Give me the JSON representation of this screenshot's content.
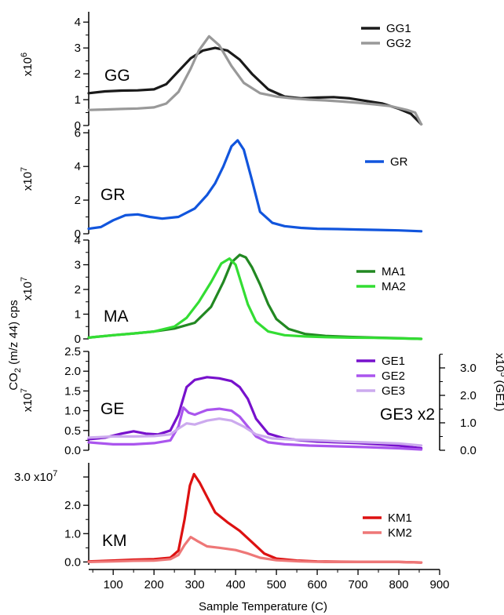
{
  "chart_data": {
    "type": "line",
    "xlabel": "Sample Temperature (C)",
    "ylabel_main": "CO",
    "ylabel_sub": "2",
    "ylabel_rest": " (m/z 44) cps",
    "xlim": [
      40,
      900
    ],
    "xticks": [
      100,
      200,
      300,
      400,
      500,
      600,
      700,
      800,
      900
    ],
    "panels": [
      {
        "id": "GG",
        "label": "GG",
        "multiplier_base": "x10",
        "multiplier_exp": "6",
        "ylim": [
          0,
          4.4
        ],
        "yticks": [
          0,
          1,
          2,
          3,
          4
        ],
        "ytick_labels": [
          "0",
          "1",
          "2",
          "3",
          "4"
        ],
        "series": [
          {
            "name": "GG1",
            "color": "#1a1a1a",
            "x": [
              40,
              80,
              120,
              160,
              200,
              230,
              260,
              290,
              320,
              350,
              380,
              410,
              440,
              480,
              520,
              560,
              600,
              640,
              680,
              720,
              760,
              800,
              830,
              855
            ],
            "y": [
              1.25,
              1.32,
              1.35,
              1.36,
              1.4,
              1.6,
              2.1,
              2.6,
              2.9,
              3.0,
              2.9,
              2.55,
              2.0,
              1.4,
              1.12,
              1.05,
              1.08,
              1.1,
              1.05,
              0.95,
              0.85,
              0.65,
              0.45,
              0.05
            ]
          },
          {
            "name": "GG2",
            "color": "#999999",
            "x": [
              40,
              80,
              120,
              160,
              200,
              230,
              260,
              290,
              310,
              335,
              360,
              390,
              420,
              460,
              500,
              540,
              580,
              620,
              660,
              700,
              740,
              780,
              820,
              840,
              855
            ],
            "y": [
              0.6,
              0.62,
              0.64,
              0.66,
              0.7,
              0.85,
              1.3,
              2.2,
              2.9,
              3.45,
              3.1,
              2.3,
              1.65,
              1.25,
              1.12,
              1.05,
              1.0,
              0.97,
              0.93,
              0.88,
              0.82,
              0.75,
              0.6,
              0.5,
              0.05
            ]
          }
        ],
        "legend": [
          "GG1",
          "GG2"
        ]
      },
      {
        "id": "GR",
        "label": "GR",
        "multiplier_base": "x10",
        "multiplier_exp": "7",
        "ylim": [
          0,
          6.2
        ],
        "yticks": [
          0,
          2,
          4,
          6
        ],
        "ytick_labels": [
          "0",
          "2",
          "4",
          "6"
        ],
        "series": [
          {
            "name": "GR",
            "color": "#1155dd",
            "x": [
              40,
              70,
              100,
              130,
              160,
              190,
              220,
              260,
              300,
              330,
              350,
              370,
              390,
              405,
              420,
              440,
              460,
              490,
              520,
              560,
              600,
              650,
              700,
              750,
              800,
              855
            ],
            "y": [
              0.3,
              0.4,
              0.8,
              1.1,
              1.15,
              1.0,
              0.9,
              1.0,
              1.5,
              2.3,
              3.0,
              4.0,
              5.2,
              5.55,
              5.0,
              3.2,
              1.3,
              0.65,
              0.45,
              0.35,
              0.3,
              0.28,
              0.25,
              0.23,
              0.2,
              0.15
            ]
          }
        ],
        "legend": [
          "GR"
        ]
      },
      {
        "id": "MA",
        "label": "MA",
        "multiplier_base": "x10",
        "multiplier_exp": "7",
        "ylim": [
          0,
          4.0
        ],
        "yticks": [
          0,
          1,
          2,
          3,
          4
        ],
        "ytick_labels": [
          "0",
          "1",
          "2",
          "3",
          "4"
        ],
        "series": [
          {
            "name": "MA1",
            "color": "#228822",
            "x": [
              40,
              100,
              150,
              200,
              250,
              300,
              340,
              370,
              390,
              410,
              425,
              440,
              460,
              480,
              500,
              530,
              570,
              620,
              680,
              740,
              800,
              855
            ],
            "y": [
              0.05,
              0.15,
              0.22,
              0.3,
              0.42,
              0.65,
              1.3,
              2.3,
              3.1,
              3.4,
              3.3,
              2.9,
              2.2,
              1.4,
              0.8,
              0.4,
              0.2,
              0.12,
              0.08,
              0.05,
              0.03,
              0.0
            ]
          },
          {
            "name": "MA2",
            "color": "#33dd33",
            "x": [
              40,
              100,
              150,
              200,
              250,
              280,
              310,
              340,
              365,
              385,
              400,
              415,
              430,
              450,
              480,
              520,
              570,
              620,
              680,
              740,
              800,
              855
            ],
            "y": [
              0.05,
              0.15,
              0.22,
              0.3,
              0.5,
              0.85,
              1.5,
              2.3,
              3.05,
              3.25,
              3.0,
              2.2,
              1.4,
              0.7,
              0.3,
              0.15,
              0.1,
              0.07,
              0.05,
              0.04,
              0.02,
              0.0
            ]
          }
        ],
        "legend": [
          "MA1",
          "MA2"
        ]
      },
      {
        "id": "GE",
        "label": "GE",
        "multiplier_base": "x10",
        "multiplier_exp": "7",
        "ylim": [
          0,
          2.5
        ],
        "yticks": [
          0,
          0.5,
          1.0,
          1.5,
          2.0,
          2.5
        ],
        "ytick_labels": [
          "0.0",
          "0.5",
          "1.0",
          "1.5",
          "2.0",
          "2.5"
        ],
        "right_ticks": [
          0,
          1.0,
          2.0,
          3.0
        ],
        "right_tick_labels": [
          "0.0",
          "1.0",
          "2.0",
          "3.0"
        ],
        "right_multiplier_base": "x10",
        "right_multiplier_exp": "5",
        "right_axis_label": "(GE1)",
        "annotation": "GE3 x2",
        "series": [
          {
            "name": "GE1",
            "color": "#7711cc",
            "x": [
              40,
              80,
              120,
              150,
              180,
              210,
              240,
              260,
              280,
              300,
              330,
              360,
              390,
              410,
              430,
              450,
              480,
              520,
              560,
              600,
              650,
              700,
              750,
              800,
              855
            ],
            "y": [
              0.28,
              0.32,
              0.42,
              0.48,
              0.42,
              0.4,
              0.5,
              0.9,
              1.6,
              1.78,
              1.85,
              1.82,
              1.75,
              1.6,
              1.3,
              0.8,
              0.42,
              0.3,
              0.25,
              0.22,
              0.2,
              0.18,
              0.15,
              0.12,
              0.05
            ]
          },
          {
            "name": "GE2",
            "color": "#aa55ee",
            "x": [
              40,
              100,
              150,
              200,
              240,
              260,
              272,
              285,
              300,
              330,
              360,
              390,
              410,
              430,
              450,
              480,
              520,
              580,
              650,
              720,
              800,
              855
            ],
            "y": [
              0.2,
              0.15,
              0.15,
              0.18,
              0.25,
              0.6,
              1.08,
              0.95,
              0.9,
              1.02,
              1.05,
              1.0,
              0.85,
              0.6,
              0.35,
              0.2,
              0.15,
              0.12,
              0.1,
              0.08,
              0.05,
              0.02
            ]
          },
          {
            "name": "GE3",
            "color": "#ccaaee",
            "x": [
              40,
              100,
              150,
              200,
              240,
              260,
              280,
              300,
              330,
              360,
              390,
              420,
              450,
              490,
              540,
              600,
              660,
              720,
              800,
              855
            ],
            "y": [
              0.32,
              0.35,
              0.35,
              0.36,
              0.4,
              0.55,
              0.68,
              0.65,
              0.75,
              0.8,
              0.75,
              0.6,
              0.4,
              0.3,
              0.27,
              0.25,
              0.22,
              0.2,
              0.17,
              0.12
            ]
          }
        ],
        "legend": [
          "GE1",
          "GE2",
          "GE3"
        ]
      },
      {
        "id": "KM",
        "label": "KM",
        "multiplier_base": "x10",
        "multiplier_exp": "7",
        "ylim": [
          -0.1,
          3.5
        ],
        "yticks": [
          0,
          1.0,
          2.0,
          3.0
        ],
        "ytick_labels": [
          "0.0",
          "1.0",
          "2.0",
          "3.0"
        ],
        "series": [
          {
            "name": "KM1",
            "color": "#dd1111",
            "x": [
              40,
              100,
              150,
              200,
              240,
              260,
              275,
              288,
              298,
              312,
              330,
              350,
              380,
              410,
              440,
              470,
              500,
              550,
              600,
              700,
              800,
              855
            ],
            "y": [
              0.02,
              0.05,
              0.08,
              0.1,
              0.15,
              0.4,
              1.5,
              2.7,
              3.1,
              2.8,
              2.3,
              1.75,
              1.4,
              1.1,
              0.7,
              0.3,
              0.12,
              0.05,
              0.02,
              0.0,
              0.0,
              -0.02
            ]
          },
          {
            "name": "KM2",
            "color": "#ee7777",
            "x": [
              40,
              100,
              150,
              200,
              240,
              260,
              275,
              290,
              305,
              330,
              360,
              400,
              430,
              460,
              500,
              560,
              620,
              700,
              800,
              855
            ],
            "y": [
              0.0,
              0.02,
              0.04,
              0.05,
              0.1,
              0.25,
              0.6,
              0.88,
              0.75,
              0.55,
              0.5,
              0.42,
              0.3,
              0.15,
              0.06,
              0.02,
              0.0,
              0.0,
              0.0,
              -0.02
            ]
          }
        ],
        "legend": [
          "KM1",
          "KM2"
        ]
      }
    ]
  }
}
